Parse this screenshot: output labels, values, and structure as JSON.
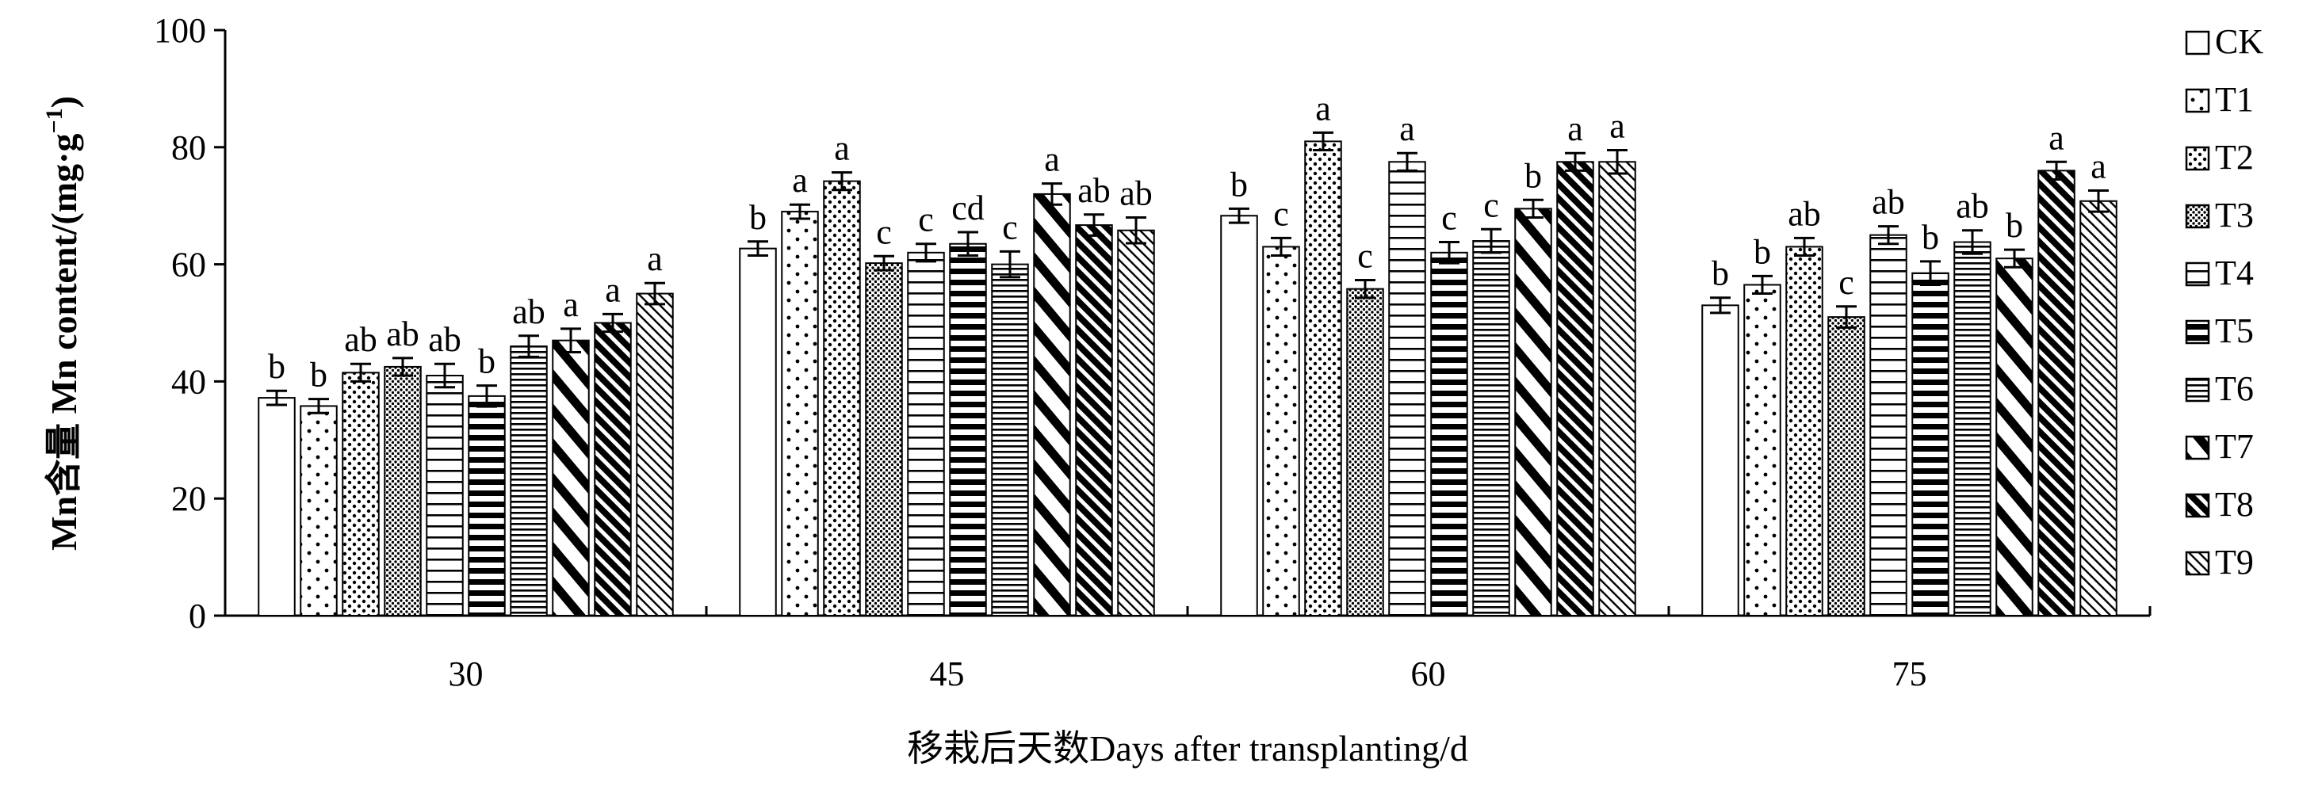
{
  "chart_data": {
    "type": "bar",
    "title": "",
    "xlabel": "移栽后天数Days after transplanting/d",
    "ylabel_prefix": "Mn含量 Mn content/(mg·g",
    "ylabel_exponent": "−1",
    "ylabel_suffix": ")",
    "ylim": [
      0,
      100
    ],
    "yticks": [
      0,
      20,
      40,
      60,
      80,
      100
    ],
    "grid": false,
    "legend_position": "right",
    "categories": [
      "30",
      "45",
      "60",
      "75"
    ],
    "series": [
      {
        "name": "CK",
        "pattern": "blank",
        "values": [
          37.2,
          62.7,
          68.3,
          53.0
        ],
        "errors": [
          1.2,
          1.2,
          1.2,
          1.3
        ],
        "labels": [
          "b",
          "b",
          "b",
          "b"
        ]
      },
      {
        "name": "T1",
        "pattern": "sparse-dots",
        "values": [
          35.8,
          69.0,
          63.0,
          56.5
        ],
        "errors": [
          1.2,
          1.2,
          1.5,
          1.5
        ],
        "labels": [
          "b",
          "a",
          "c",
          "b"
        ]
      },
      {
        "name": "T2",
        "pattern": "dots",
        "values": [
          41.5,
          74.2,
          81.0,
          63.0
        ],
        "errors": [
          1.5,
          1.5,
          1.5,
          1.5
        ],
        "labels": [
          "ab",
          "a",
          "a",
          "ab"
        ]
      },
      {
        "name": "T3",
        "pattern": "dense-dots",
        "values": [
          42.5,
          60.2,
          55.8,
          51.0
        ],
        "errors": [
          1.5,
          1.2,
          1.5,
          1.8
        ],
        "labels": [
          "ab",
          "c",
          "c",
          "c"
        ]
      },
      {
        "name": "T4",
        "pattern": "horizontal-lines",
        "values": [
          41.0,
          62.0,
          77.5,
          65.0
        ],
        "errors": [
          2.0,
          1.5,
          1.5,
          1.5
        ],
        "labels": [
          "ab",
          "c",
          "a",
          "ab"
        ]
      },
      {
        "name": "T5",
        "pattern": "thick-horizontal",
        "values": [
          37.5,
          63.5,
          62.0,
          58.5
        ],
        "errors": [
          1.8,
          2.0,
          1.8,
          2.0
        ],
        "labels": [
          "b",
          "cd",
          "c",
          "b"
        ]
      },
      {
        "name": "T6",
        "pattern": "dense-horizontal",
        "values": [
          46.0,
          60.0,
          64.0,
          63.8
        ],
        "errors": [
          1.8,
          2.2,
          2.0,
          2.0
        ],
        "labels": [
          "ab",
          "c",
          "c",
          "ab"
        ]
      },
      {
        "name": "T7",
        "pattern": "wide-diagonal",
        "values": [
          47.0,
          72.0,
          69.5,
          61.0
        ],
        "errors": [
          2.0,
          1.8,
          1.5,
          1.5
        ],
        "labels": [
          "a",
          "a",
          "b",
          "b"
        ]
      },
      {
        "name": "T8",
        "pattern": "dark-diagonal",
        "values": [
          50.0,
          66.7,
          77.5,
          76.0
        ],
        "errors": [
          1.5,
          1.8,
          1.5,
          1.5
        ],
        "labels": [
          "a",
          "ab",
          "a",
          "a"
        ]
      },
      {
        "name": "T9",
        "pattern": "thin-diagonal",
        "values": [
          55.0,
          65.8,
          77.5,
          70.8
        ],
        "errors": [
          1.8,
          2.2,
          2.0,
          1.8
        ],
        "labels": [
          "a",
          "ab",
          "a",
          "a"
        ]
      }
    ]
  }
}
